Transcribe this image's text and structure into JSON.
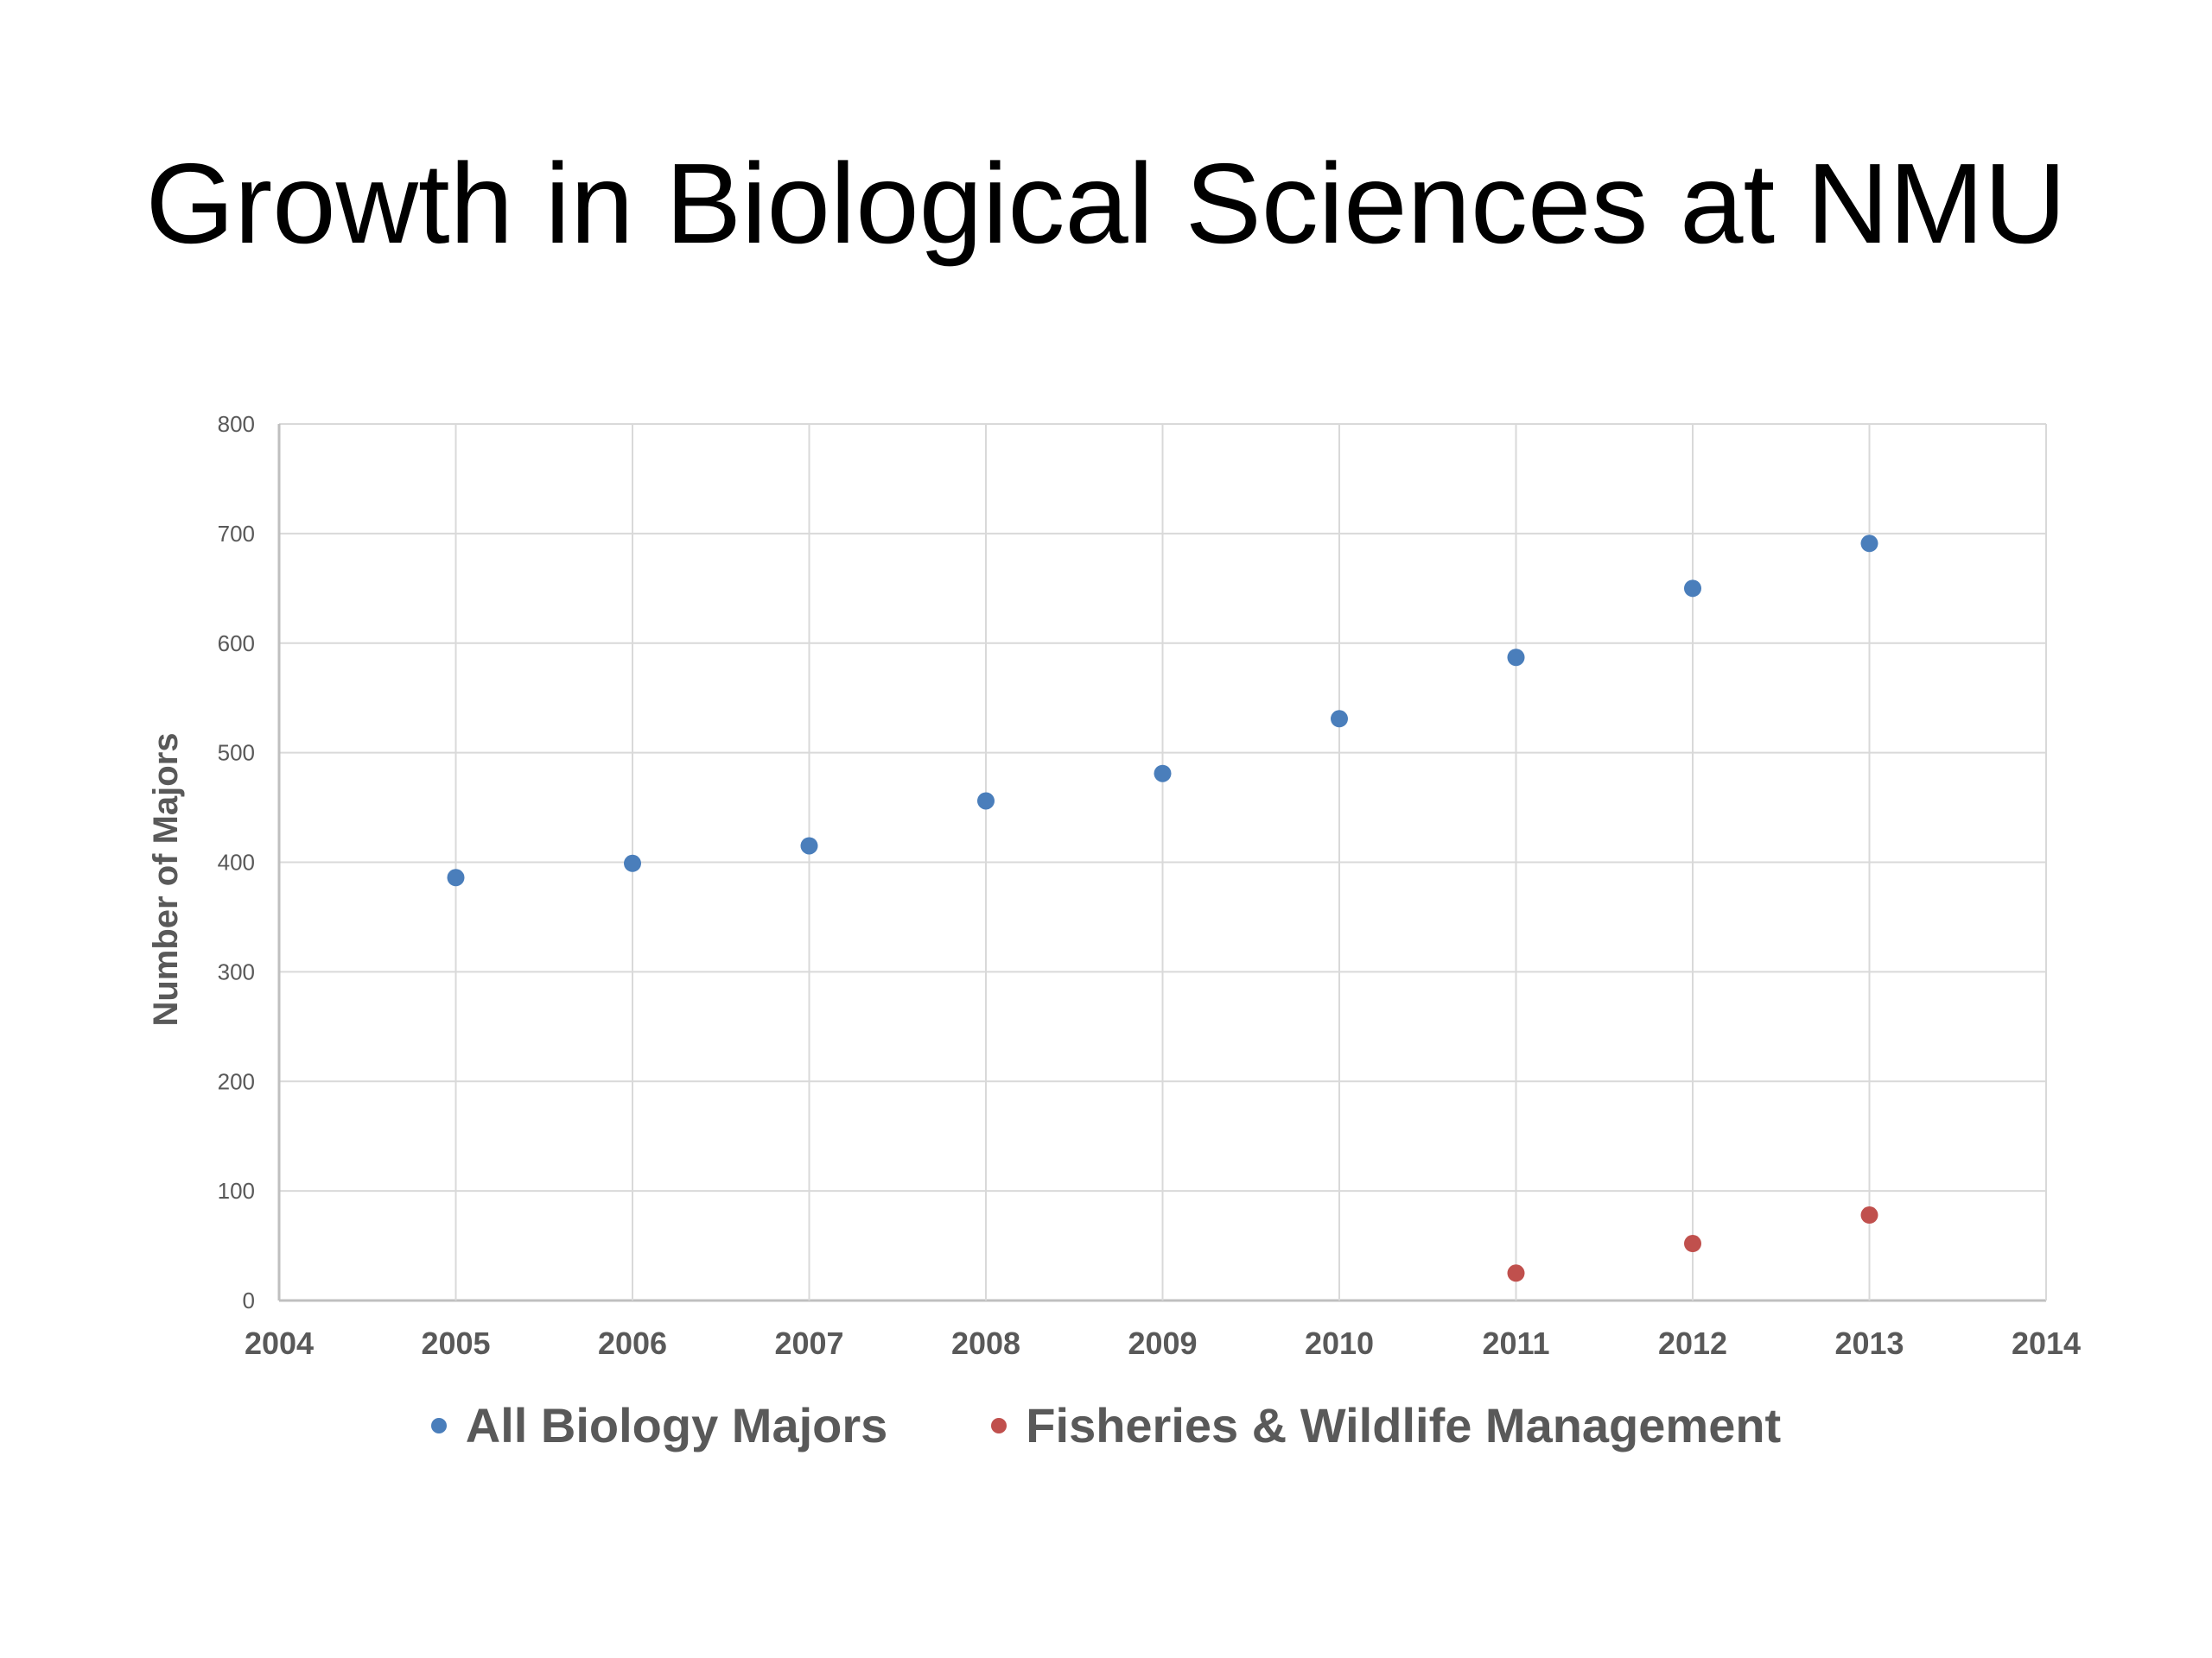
{
  "slide": {
    "title": "Growth in Biological Sciences at NMU"
  },
  "chart_data": {
    "type": "scatter",
    "title": "",
    "xlabel": "",
    "ylabel": "Number of Majors",
    "xlim": [
      2004,
      2014
    ],
    "ylim": [
      0,
      800
    ],
    "x_ticks": [
      2004,
      2005,
      2006,
      2007,
      2008,
      2009,
      2010,
      2011,
      2012,
      2013,
      2014
    ],
    "y_ticks": [
      0,
      100,
      200,
      300,
      400,
      500,
      600,
      700,
      800
    ],
    "grid": true,
    "legend_position": "bottom",
    "series": [
      {
        "name": "All Biology Majors",
        "color": "#4a7ebb",
        "points": [
          {
            "x": 2005,
            "y": 386
          },
          {
            "x": 2006,
            "y": 399
          },
          {
            "x": 2007,
            "y": 415
          },
          {
            "x": 2008,
            "y": 456
          },
          {
            "x": 2009,
            "y": 481
          },
          {
            "x": 2010,
            "y": 531
          },
          {
            "x": 2011,
            "y": 587
          },
          {
            "x": 2012,
            "y": 650
          },
          {
            "x": 2013,
            "y": 691
          }
        ]
      },
      {
        "name": "Fisheries & Wildlife Management",
        "color": "#c0504d",
        "points": [
          {
            "x": 2011,
            "y": 25
          },
          {
            "x": 2012,
            "y": 52
          },
          {
            "x": 2013,
            "y": 78
          }
        ]
      }
    ]
  }
}
